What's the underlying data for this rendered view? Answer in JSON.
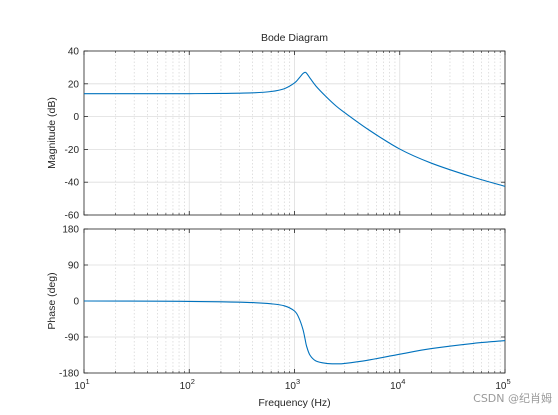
{
  "chart_data": [
    {
      "type": "line",
      "title": "Bode Diagram",
      "xlabel": "",
      "ylabel": "Magnitude (dB)",
      "xscale": "log",
      "xlim": [
        10,
        100000
      ],
      "ylim": [
        -60,
        40
      ],
      "yticks": [
        "40",
        "20",
        "0",
        "-20",
        "-40",
        "-60"
      ],
      "grid": true,
      "color": "#0072BD",
      "series": [
        {
          "x": [
            10,
            20,
            50,
            100,
            200,
            400,
            600,
            800,
            1000,
            1100,
            1200,
            1260,
            1300,
            1400,
            1600,
            2000,
            2500,
            3000,
            5000,
            10000,
            20000,
            50000,
            100000
          ],
          "values": [
            14,
            14,
            14,
            14,
            14.1,
            14.5,
            15.3,
            17,
            20.5,
            23.3,
            26.2,
            27,
            26.5,
            23.6,
            18.6,
            12.1,
            6.3,
            2.4,
            -7.8,
            -19.8,
            -28.4,
            -37,
            -42.5
          ]
        }
      ]
    },
    {
      "type": "line",
      "title": "",
      "xlabel": "Frequency  (Hz)",
      "ylabel": "Phase (deg)",
      "xscale": "log",
      "xlim": [
        10,
        100000
      ],
      "xticks": [
        "10^1",
        "10^2",
        "10^3",
        "10^4",
        "10^5"
      ],
      "ylim": [
        -180,
        180
      ],
      "yticks": [
        "180",
        "90",
        "0",
        "-90",
        "-180"
      ],
      "grid": true,
      "color": "#0072BD",
      "series": [
        {
          "x": [
            10,
            50,
            100,
            200,
            400,
            600,
            800,
            1000,
            1100,
            1200,
            1260,
            1300,
            1400,
            1600,
            2000,
            2500,
            3000,
            5000,
            10000,
            20000,
            50000,
            100000
          ],
          "values": [
            0,
            -0.5,
            -1,
            -2,
            -4,
            -7,
            -12,
            -25,
            -42,
            -70,
            -95,
            -112,
            -135,
            -150,
            -156,
            -157,
            -156,
            -148,
            -133,
            -119,
            -106,
            -99
          ]
        }
      ]
    }
  ],
  "watermark": "CSDN @纪肖姆"
}
